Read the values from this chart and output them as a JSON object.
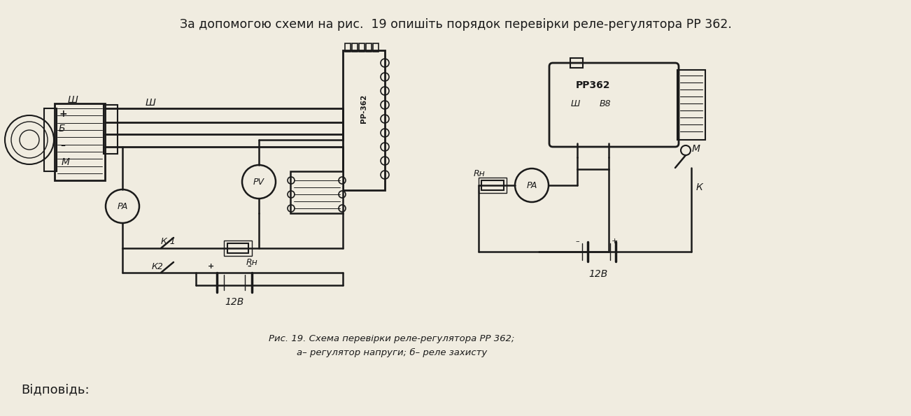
{
  "bg": "#f0ece0",
  "dark": "#1a1a1a",
  "title": "За допомогою схеми на рис.  19 опишіть порядок перевірки реле-регулятора РР 362.",
  "cap1": "Рис. 19. Схема перевірки реле-регулятора РР 362;",
  "cap2": "а– регулятор напруги; б– реле захисту",
  "footer": "Відповідь:"
}
